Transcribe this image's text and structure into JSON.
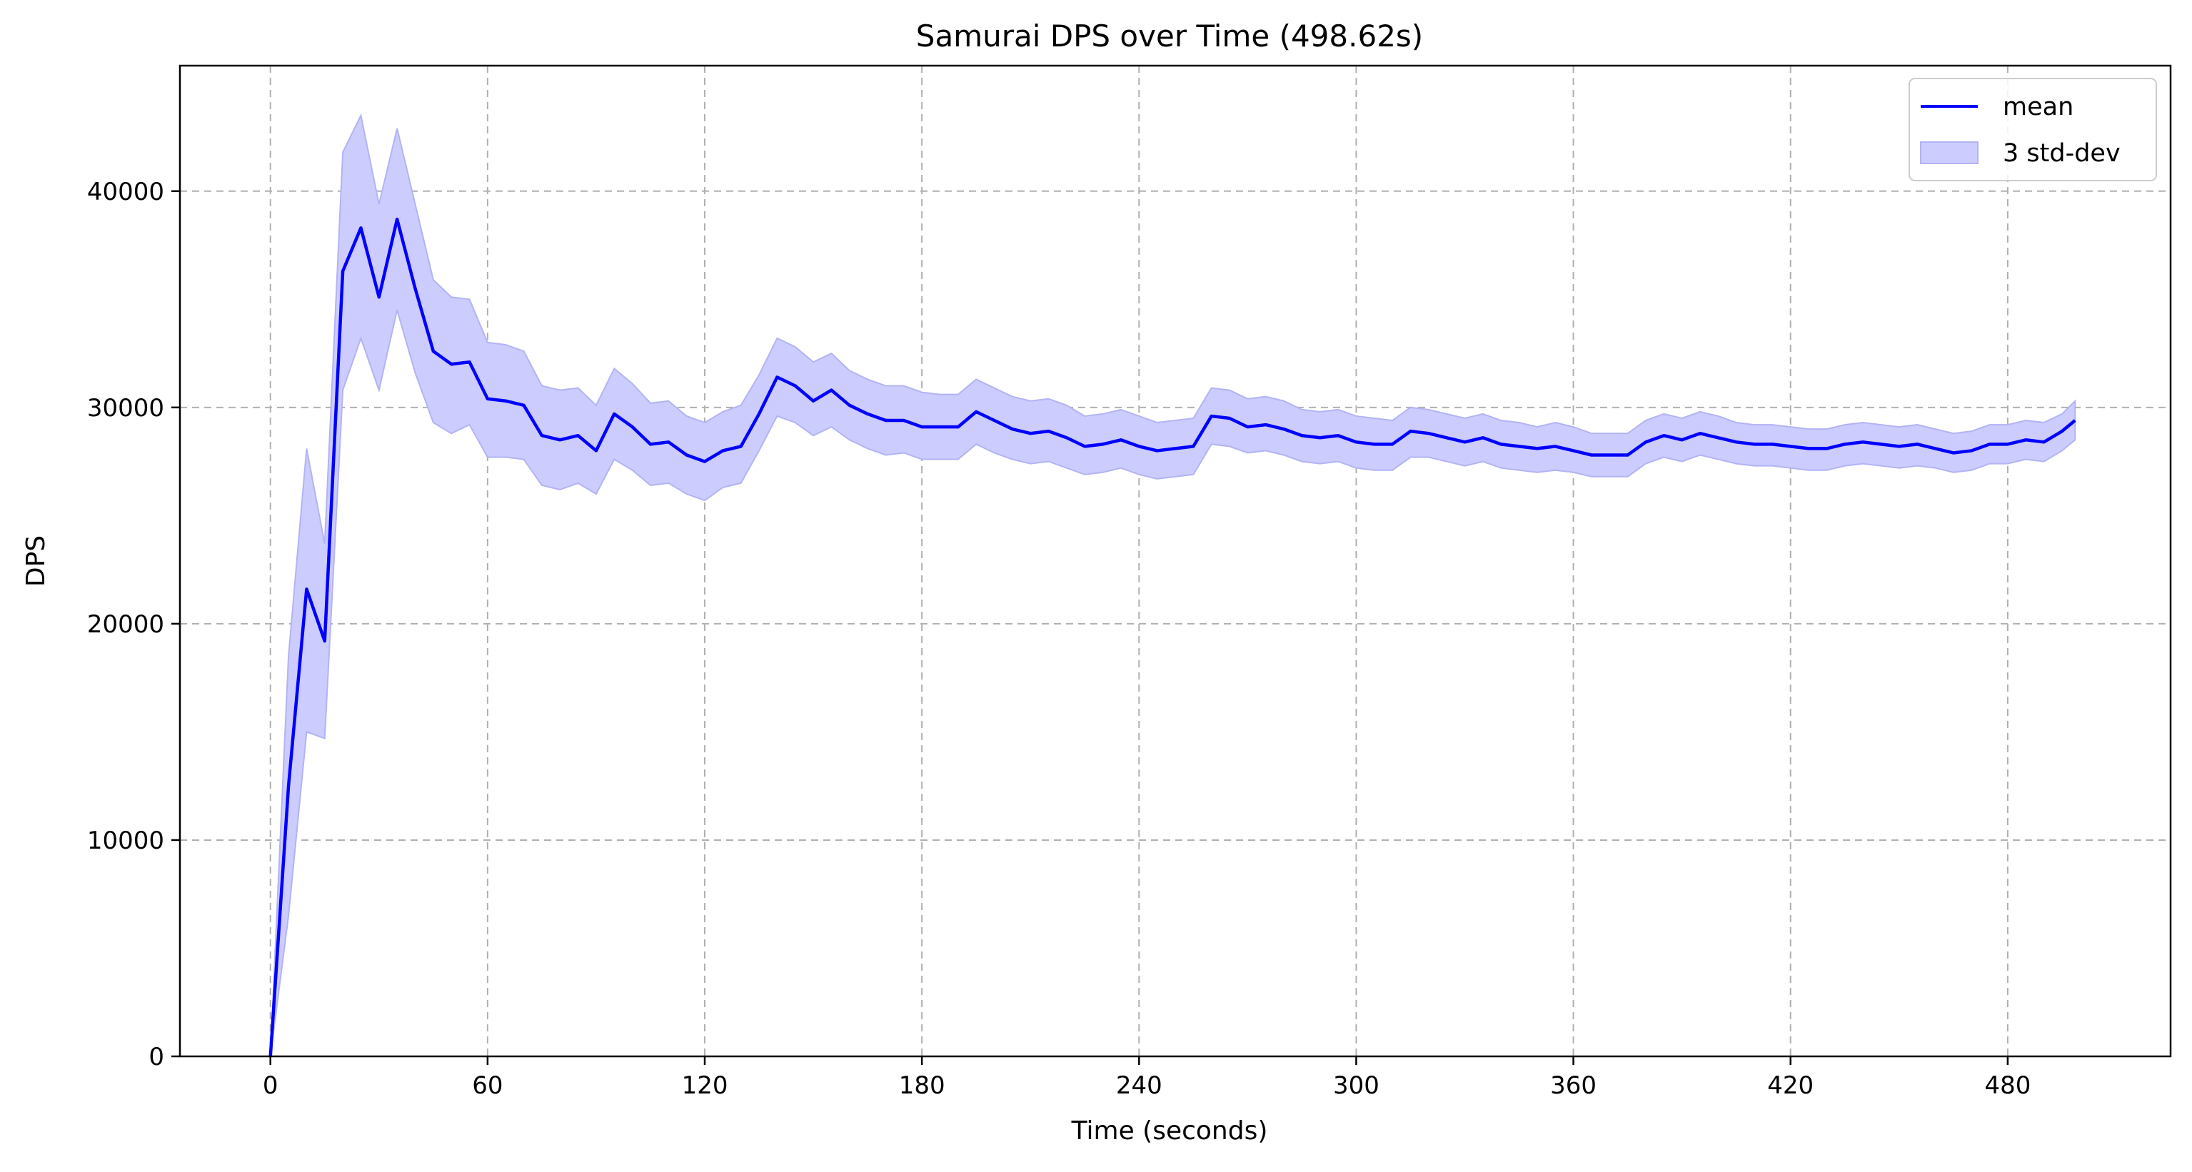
{
  "chart_data": {
    "type": "line",
    "title": "Samurai DPS over Time (498.62s)",
    "xlabel": "Time (seconds)",
    "ylabel": "DPS",
    "xlim": [
      -25,
      525
    ],
    "ylim": [
      0,
      45800
    ],
    "xticks": [
      0,
      60,
      120,
      180,
      240,
      300,
      360,
      420,
      480
    ],
    "yticks": [
      0,
      10000,
      20000,
      30000,
      40000
    ],
    "grid": true,
    "legend_position": "top-right",
    "colors": {
      "line": "#0000ff",
      "band_fill": "#ccccff",
      "band_edge": "#b3b3f5"
    },
    "series": [
      {
        "name": "mean",
        "kind": "line",
        "x": [
          0,
          5,
          10,
          15,
          20,
          25,
          30,
          35,
          40,
          45,
          50,
          55,
          60,
          65,
          70,
          75,
          80,
          85,
          90,
          95,
          100,
          105,
          110,
          115,
          120,
          125,
          130,
          135,
          140,
          145,
          150,
          155,
          160,
          165,
          170,
          175,
          180,
          185,
          190,
          195,
          200,
          205,
          210,
          215,
          220,
          225,
          230,
          235,
          240,
          245,
          250,
          255,
          260,
          265,
          270,
          275,
          280,
          285,
          290,
          295,
          300,
          305,
          310,
          315,
          320,
          325,
          330,
          335,
          340,
          345,
          350,
          355,
          360,
          365,
          370,
          375,
          380,
          385,
          390,
          395,
          400,
          405,
          410,
          415,
          420,
          425,
          430,
          435,
          440,
          445,
          450,
          455,
          460,
          465,
          470,
          475,
          480,
          485,
          490,
          495,
          498.62
        ],
        "y": [
          0,
          12500,
          21600,
          19200,
          36300,
          38300,
          35100,
          38700,
          35500,
          32600,
          32000,
          32100,
          30400,
          30300,
          30100,
          28700,
          28500,
          28700,
          28000,
          29700,
          29100,
          28300,
          28400,
          27800,
          27500,
          28000,
          28200,
          29700,
          31400,
          31000,
          30300,
          30800,
          30100,
          29700,
          29400,
          29400,
          29100,
          29100,
          29100,
          29800,
          29400,
          29000,
          28800,
          28900,
          28600,
          28200,
          28300,
          28500,
          28200,
          28000,
          28100,
          28200,
          29600,
          29500,
          29100,
          29200,
          29000,
          28700,
          28600,
          28700,
          28400,
          28300,
          28300,
          28900,
          28800,
          28600,
          28400,
          28600,
          28300,
          28200,
          28100,
          28200,
          28000,
          27800,
          27800,
          27800,
          28400,
          28700,
          28500,
          28800,
          28600,
          28400,
          28300,
          28300,
          28200,
          28100,
          28100,
          28300,
          28400,
          28300,
          28200,
          28300,
          28100,
          27900,
          28000,
          28300,
          28300,
          28500,
          28400,
          28900,
          29400
        ]
      },
      {
        "name": "3 std-dev",
        "kind": "band",
        "x": [
          0,
          5,
          10,
          15,
          20,
          25,
          30,
          35,
          40,
          45,
          50,
          55,
          60,
          65,
          70,
          75,
          80,
          85,
          90,
          95,
          100,
          105,
          110,
          115,
          120,
          125,
          130,
          135,
          140,
          145,
          150,
          155,
          160,
          165,
          170,
          175,
          180,
          185,
          190,
          195,
          200,
          205,
          210,
          215,
          220,
          225,
          230,
          235,
          240,
          245,
          250,
          255,
          260,
          265,
          270,
          275,
          280,
          285,
          290,
          295,
          300,
          305,
          310,
          315,
          320,
          325,
          330,
          335,
          340,
          345,
          350,
          355,
          360,
          365,
          370,
          375,
          380,
          385,
          390,
          395,
          400,
          405,
          410,
          415,
          420,
          425,
          430,
          435,
          440,
          445,
          450,
          455,
          460,
          465,
          470,
          475,
          480,
          485,
          490,
          495,
          498.62
        ],
        "upper": [
          0,
          18500,
          28100,
          23700,
          41800,
          43500,
          39400,
          42900,
          39400,
          35900,
          35100,
          35000,
          33000,
          32900,
          32600,
          31000,
          30800,
          30900,
          30100,
          31800,
          31100,
          30200,
          30300,
          29600,
          29300,
          29800,
          30100,
          31500,
          33200,
          32800,
          32100,
          32500,
          31700,
          31300,
          31000,
          31000,
          30700,
          30600,
          30600,
          31300,
          30900,
          30500,
          30300,
          30400,
          30100,
          29600,
          29700,
          29900,
          29600,
          29300,
          29400,
          29500,
          30900,
          30800,
          30400,
          30500,
          30300,
          29900,
          29800,
          29900,
          29600,
          29500,
          29400,
          30000,
          29900,
          29700,
          29500,
          29700,
          29400,
          29300,
          29100,
          29300,
          29100,
          28800,
          28800,
          28800,
          29400,
          29700,
          29500,
          29800,
          29600,
          29300,
          29200,
          29200,
          29100,
          29000,
          29000,
          29200,
          29300,
          29200,
          29100,
          29200,
          29000,
          28800,
          28900,
          29200,
          29200,
          29400,
          29300,
          29700,
          30300
        ],
        "lower": [
          0,
          6500,
          15000,
          14700,
          30800,
          33200,
          30800,
          34500,
          31600,
          29300,
          28800,
          29200,
          27700,
          27700,
          27600,
          26400,
          26200,
          26500,
          26000,
          27600,
          27100,
          26400,
          26500,
          26000,
          25700,
          26300,
          26500,
          28000,
          29600,
          29300,
          28700,
          29100,
          28500,
          28100,
          27800,
          27900,
          27600,
          27600,
          27600,
          28300,
          27900,
          27600,
          27400,
          27500,
          27200,
          26900,
          27000,
          27200,
          26900,
          26700,
          26800,
          26900,
          28300,
          28200,
          27900,
          28000,
          27800,
          27500,
          27400,
          27500,
          27200,
          27100,
          27100,
          27700,
          27700,
          27500,
          27300,
          27500,
          27200,
          27100,
          27000,
          27100,
          27000,
          26800,
          26800,
          26800,
          27400,
          27700,
          27500,
          27800,
          27600,
          27400,
          27300,
          27300,
          27200,
          27100,
          27100,
          27300,
          27400,
          27300,
          27200,
          27300,
          27200,
          27000,
          27100,
          27400,
          27400,
          27600,
          27500,
          28000,
          28500
        ]
      }
    ]
  }
}
